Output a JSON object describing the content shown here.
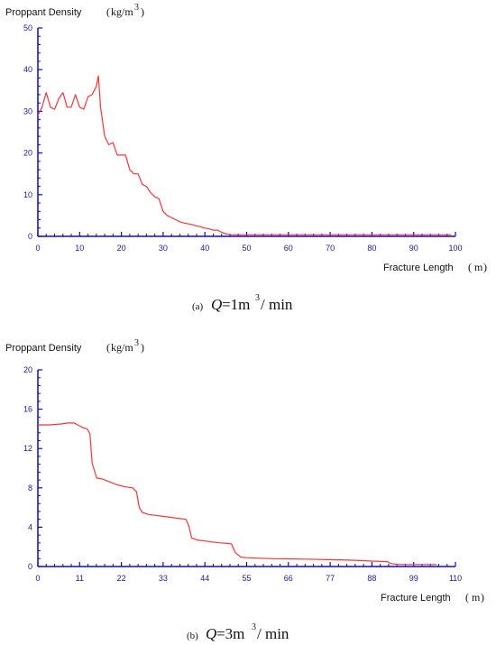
{
  "chart_data": [
    {
      "type": "line",
      "ylabel": "Proppant Density",
      "ylabel_unit": "kg/m",
      "ylabel_unit_sup": "3",
      "xlabel": "Fracture Length",
      "xlabel_unit": "m",
      "xlim": [
        0,
        100
      ],
      "ylim": [
        0,
        50
      ],
      "xticks": [
        0,
        10,
        20,
        30,
        40,
        50,
        60,
        70,
        80,
        90,
        100
      ],
      "yticks": [
        0,
        10,
        20,
        30,
        40,
        50
      ],
      "grid": false,
      "caption": {
        "label": "(a)",
        "var": "Q",
        "text": "=1m",
        "sup": "3",
        "unit": " / min"
      },
      "series": [
        {
          "color": "#ff3333",
          "x": [
            0,
            1,
            2,
            3,
            4,
            5,
            6,
            7,
            8,
            9,
            10,
            11,
            12,
            13,
            14,
            14.5,
            15,
            16,
            17,
            18,
            19,
            20,
            21,
            22,
            23,
            24,
            25,
            26,
            27,
            28,
            29,
            30,
            31,
            32,
            33,
            34,
            35,
            36,
            37,
            38,
            39,
            40,
            41,
            42,
            43,
            44,
            45,
            46,
            50,
            60,
            70,
            80,
            90,
            99
          ],
          "y": [
            29,
            31,
            34.5,
            31,
            30.5,
            33,
            34.5,
            31,
            31,
            34,
            31,
            30.5,
            33.5,
            34,
            36,
            38.5,
            31,
            24,
            22,
            22.5,
            19.5,
            19.5,
            19.5,
            16,
            15,
            15,
            12.5,
            12,
            10.5,
            9.5,
            9,
            6,
            5,
            4.5,
            4,
            3.5,
            3.2,
            3,
            2.8,
            2.5,
            2.3,
            2,
            1.8,
            1.5,
            1.5,
            1,
            0.6,
            0.4,
            0.4,
            0.4,
            0.4,
            0.4,
            0.4,
            0.4
          ]
        }
      ]
    },
    {
      "type": "line",
      "ylabel": "Proppant Density",
      "ylabel_unit": "kg/m",
      "ylabel_unit_sup": "3",
      "xlabel": "Fracture Length",
      "xlabel_unit": "m",
      "xlim": [
        0,
        110
      ],
      "ylim": [
        0,
        20
      ],
      "xticks": [
        0,
        11,
        22,
        33,
        44,
        55,
        66,
        77,
        88,
        99,
        110
      ],
      "yticks": [
        0,
        4,
        8,
        12,
        16,
        20
      ],
      "grid": false,
      "caption": {
        "label": "(b)",
        "var": "Q",
        "text": "=3m",
        "sup": "3",
        "unit": " / min"
      },
      "series": [
        {
          "color": "#ff3333",
          "x": [
            0,
            3,
            6,
            8,
            9.5,
            11,
            12,
            13,
            13.7,
            14.3,
            15.5,
            17,
            19,
            21,
            23,
            25,
            26,
            26.7,
            27.5,
            29,
            31,
            33,
            35,
            37,
            39,
            39.8,
            40.5,
            42,
            44,
            46,
            48,
            50,
            51,
            52,
            53.5,
            55,
            58,
            62,
            66,
            70,
            77,
            82,
            88,
            92,
            93,
            95,
            99,
            105
          ],
          "y": [
            14.4,
            14.4,
            14.5,
            14.6,
            14.6,
            14.3,
            14.1,
            14.0,
            13.5,
            10.5,
            9.0,
            8.9,
            8.6,
            8.3,
            8.1,
            8.0,
            7.6,
            6.0,
            5.5,
            5.3,
            5.2,
            5.1,
            5.0,
            4.9,
            4.8,
            4.1,
            2.9,
            2.7,
            2.6,
            2.5,
            2.4,
            2.35,
            2.3,
            1.4,
            0.95,
            0.9,
            0.85,
            0.8,
            0.78,
            0.75,
            0.7,
            0.65,
            0.55,
            0.5,
            0.3,
            0.2,
            0.2,
            0.2
          ]
        }
      ]
    }
  ]
}
